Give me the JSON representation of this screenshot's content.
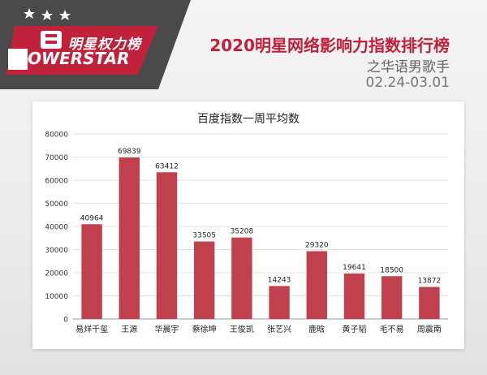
{
  "brand": {
    "name_cn": "明星权力榜",
    "name_en": "OWERSTAR"
  },
  "header": {
    "title": "2020明星网络影响力指数排行榜",
    "subtitle": "之华语男歌手",
    "date_range": "02.24-03.01"
  },
  "colors": {
    "accent": "#c0213b",
    "bar": "#c0404d",
    "banner_dark": "#4a4a4a",
    "banner_red": "#c0213b"
  },
  "chart_data": {
    "type": "bar",
    "title": "百度指数一周平均数",
    "categories": [
      "易烊千玺",
      "王源",
      "华晨宇",
      "蔡徐坤",
      "王俊凯",
      "张艺兴",
      "鹿晗",
      "黄子韬",
      "毛不易",
      "周震南"
    ],
    "values": [
      40964,
      69839,
      63412,
      33505,
      35208,
      14243,
      29320,
      19641,
      18500,
      13872
    ],
    "ylim": [
      0,
      80000
    ],
    "yticks": [
      0,
      10000,
      20000,
      30000,
      40000,
      50000,
      60000,
      70000,
      80000
    ],
    "grid": true,
    "data_labels": true
  }
}
